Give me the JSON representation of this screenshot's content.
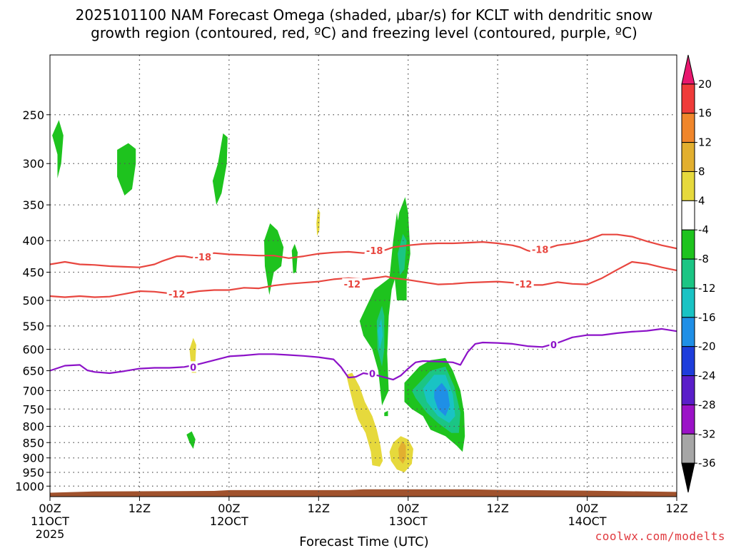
{
  "chart_data": {
    "type": "contour",
    "title_lines": [
      "2025101100 NAM Forecast Omega (shaded, μbar/s) for KCLT with dendritic snow",
      "growth region (contoured, red, ºC) and freezing level (contoured, purple, ºC)"
    ],
    "xlabel": "Forecast Time (UTC)",
    "credit": "coolwx.com/modelts",
    "y_axis": {
      "scale": "log",
      "range": [
        1040,
        200
      ],
      "ticks": [
        250,
        300,
        350,
        400,
        450,
        500,
        550,
        600,
        650,
        700,
        750,
        800,
        850,
        900,
        950,
        1000
      ]
    },
    "x_axis": {
      "range_hours": [
        0,
        84
      ],
      "ticks": [
        {
          "h": 0,
          "lines": [
            "00Z",
            "11OCT",
            "2025"
          ]
        },
        {
          "h": 12,
          "lines": [
            "12Z"
          ]
        },
        {
          "h": 24,
          "lines": [
            "00Z",
            "12OCT"
          ]
        },
        {
          "h": 36,
          "lines": [
            "12Z"
          ]
        },
        {
          "h": 48,
          "lines": [
            "00Z",
            "13OCT"
          ]
        },
        {
          "h": 60,
          "lines": [
            "12Z"
          ]
        },
        {
          "h": 72,
          "lines": [
            "00Z",
            "14OCT"
          ]
        },
        {
          "h": 84,
          "lines": [
            "12Z"
          ]
        }
      ]
    },
    "colorbar": {
      "labels": [
        "20",
        "16",
        "12",
        "8",
        "4",
        "-4",
        "-8",
        "-12",
        "-16",
        "-20",
        "-24",
        "-28",
        "-32",
        "-36"
      ],
      "colors": [
        "#e8176e",
        "#ef3b39",
        "#f0862b",
        "#e2af2f",
        "#e6d93c",
        "#ffffff",
        "#1ec31e",
        "#1bc584",
        "#19c3c4",
        "#1f8fe6",
        "#1e3ddb",
        "#5a1ec9",
        "#9b12c7",
        "#a6a6a6",
        "#000000"
      ]
    },
    "series": [
      {
        "label": "-18",
        "color": "#e8463f",
        "x": [
          0,
          2,
          4,
          6,
          8,
          10,
          12,
          14,
          15,
          16,
          17,
          18,
          19,
          20,
          21,
          22,
          24,
          26,
          28,
          30,
          32,
          34,
          36,
          38,
          40,
          42,
          44,
          45,
          46,
          48,
          50,
          52,
          54,
          56,
          58,
          60,
          62,
          63,
          64,
          65,
          66,
          68,
          70,
          72,
          74,
          76,
          78,
          80,
          82,
          84
        ],
        "y": [
          437,
          433,
          437,
          438,
          440,
          441,
          442,
          437,
          432,
          428,
          424,
          424,
          426,
          424,
          421,
          419,
          421,
          422,
          423,
          423,
          427,
          424,
          420,
          418,
          417,
          419,
          416,
          414,
          410,
          407,
          405,
          404,
          404,
          403,
          402,
          404,
          407,
          410,
          415,
          418,
          414,
          407,
          404,
          399,
          391,
          391,
          394,
          401,
          407,
          412
        ]
      },
      {
        "label": "-12",
        "color": "#e8463f",
        "x": [
          0,
          2,
          4,
          6,
          8,
          10,
          12,
          14,
          16,
          18,
          20,
          22,
          24,
          26,
          28,
          30,
          32,
          34,
          36,
          38,
          40,
          42,
          44,
          45,
          46,
          48,
          50,
          52,
          54,
          56,
          58,
          60,
          62,
          64,
          66,
          68,
          70,
          72,
          74,
          76,
          78,
          80,
          82,
          84
        ],
        "y": [
          492,
          494,
          492,
          494,
          493,
          488,
          483,
          484,
          487,
          487,
          483,
          481,
          481,
          477,
          478,
          473,
          470,
          468,
          466,
          462,
          460,
          462,
          459,
          457,
          460,
          463,
          467,
          471,
          470,
          468,
          467,
          466,
          468,
          472,
          472,
          467,
          470,
          471,
          460,
          446,
          433,
          436,
          442,
          447
        ]
      },
      {
        "label": "0",
        "color": "#8c12c8",
        "x": [
          0,
          2,
          4,
          5,
          6,
          8,
          10,
          12,
          14,
          16,
          18,
          20,
          22,
          24,
          26,
          28,
          30,
          32,
          34,
          36,
          38,
          39,
          40,
          41,
          42,
          44,
          46,
          47,
          48,
          49,
          50,
          52,
          54,
          55,
          56,
          57,
          58,
          60,
          62,
          64,
          66,
          68,
          70,
          72,
          74,
          76,
          78,
          80,
          82,
          84
        ],
        "y": [
          650,
          638,
          636,
          649,
          653,
          656,
          651,
          645,
          643,
          643,
          641,
          634,
          625,
          616,
          614,
          611,
          611,
          613,
          615,
          618,
          623,
          641,
          667,
          665,
          656,
          662,
          672,
          662,
          645,
          630,
          627,
          628,
          630,
          636,
          606,
          588,
          585,
          586,
          588,
          593,
          595,
          586,
          574,
          569,
          569,
          565,
          562,
          560,
          556,
          561
        ]
      }
    ],
    "regions": [
      {
        "fill": "#1ec31e",
        "pts": [
          [
            1.0,
            290
          ],
          [
            0.3,
            270
          ],
          [
            1.2,
            255
          ],
          [
            1.8,
            270
          ],
          [
            1.5,
            300
          ],
          [
            1.0,
            317
          ]
        ]
      },
      {
        "fill": "#1ec31e",
        "pts": [
          [
            9.0,
            285
          ],
          [
            10.5,
            278
          ],
          [
            11.5,
            284
          ],
          [
            11.5,
            300
          ],
          [
            11.0,
            330
          ],
          [
            10.0,
            338
          ],
          [
            9.0,
            315
          ]
        ]
      },
      {
        "fill": "#1ec31e",
        "pts": [
          [
            22.5,
            300
          ],
          [
            23.2,
            268
          ],
          [
            23.8,
            272
          ],
          [
            23.7,
            300
          ],
          [
            23.0,
            335
          ],
          [
            22.3,
            350
          ],
          [
            21.8,
            320
          ]
        ]
      },
      {
        "fill": "#1ec31e",
        "pts": [
          [
            28.7,
            400
          ],
          [
            29.5,
            375
          ],
          [
            30.5,
            385
          ],
          [
            31.3,
            410
          ],
          [
            31.0,
            440
          ],
          [
            30.0,
            450
          ],
          [
            29.4,
            490
          ],
          [
            28.8,
            440
          ]
        ]
      },
      {
        "fill": "#1ec31e",
        "pts": [
          [
            32.4,
            415
          ],
          [
            32.8,
            405
          ],
          [
            33.2,
            418
          ],
          [
            33.0,
            450
          ],
          [
            32.6,
            452
          ]
        ]
      },
      {
        "fill": "#1ec31e",
        "pts": [
          [
            18.3,
            825
          ],
          [
            19.0,
            815
          ],
          [
            19.5,
            840
          ],
          [
            19.2,
            870
          ],
          [
            18.7,
            850
          ]
        ]
      },
      {
        "fill": "#1ec31e",
        "pts": [
          [
            43.5,
            480
          ],
          [
            44.5,
            470
          ],
          [
            45.5,
            460
          ],
          [
            46.0,
            400
          ],
          [
            46.5,
            360
          ],
          [
            47.0,
            400
          ],
          [
            46.5,
            450
          ],
          [
            45.8,
            480
          ],
          [
            45.4,
            530
          ],
          [
            45.2,
            610
          ],
          [
            45.4,
            700
          ],
          [
            44.5,
            740
          ],
          [
            44.0,
            650
          ],
          [
            43.2,
            600
          ],
          [
            42.0,
            570
          ],
          [
            41.5,
            540
          ],
          [
            42.3,
            515
          ]
        ]
      },
      {
        "fill": "#1bc584",
        "pts": [
          [
            43.8,
            540
          ],
          [
            44.5,
            510
          ],
          [
            44.8,
            530
          ],
          [
            44.8,
            600
          ],
          [
            44.5,
            640
          ],
          [
            43.9,
            600
          ]
        ]
      },
      {
        "fill": "#19c3c4",
        "pts": [
          [
            43.9,
            560
          ],
          [
            44.4,
            535
          ],
          [
            44.6,
            570
          ],
          [
            44.2,
            600
          ]
        ]
      },
      {
        "fill": "#1ec31e",
        "pts": [
          [
            46.0,
            420
          ],
          [
            46.8,
            360
          ],
          [
            47.6,
            340
          ],
          [
            48.0,
            360
          ],
          [
            48.3,
            420
          ],
          [
            47.8,
            460
          ],
          [
            47.8,
            500
          ],
          [
            46.5,
            500
          ],
          [
            46.2,
            460
          ]
        ]
      },
      {
        "fill": "#1bc584",
        "pts": [
          [
            46.6,
            420
          ],
          [
            47.3,
            390
          ],
          [
            47.8,
            400
          ],
          [
            47.5,
            445
          ],
          [
            46.9,
            455
          ]
        ]
      },
      {
        "fill": "#1ec31e",
        "pts": [
          [
            44.8,
            760
          ],
          [
            45.3,
            755
          ],
          [
            45.3,
            770
          ],
          [
            44.8,
            770
          ]
        ]
      },
      {
        "fill": "#1ec31e",
        "pts": [
          [
            47.5,
            680
          ],
          [
            48.5,
            660
          ],
          [
            49.5,
            640
          ],
          [
            51.0,
            625
          ],
          [
            53.0,
            620
          ],
          [
            54.0,
            650
          ],
          [
            55.0,
            700
          ],
          [
            55.5,
            760
          ],
          [
            55.6,
            830
          ],
          [
            55.3,
            880
          ],
          [
            54.5,
            860
          ],
          [
            53.0,
            830
          ],
          [
            51.0,
            810
          ],
          [
            50.0,
            770
          ],
          [
            48.5,
            750
          ],
          [
            47.5,
            730
          ]
        ]
      },
      {
        "fill": "#1bc584",
        "pts": [
          [
            48.5,
            700
          ],
          [
            49.5,
            680
          ],
          [
            51.0,
            650
          ],
          [
            53.0,
            640
          ],
          [
            54.2,
            690
          ],
          [
            55.0,
            760
          ],
          [
            54.8,
            820
          ],
          [
            53.8,
            820
          ],
          [
            52.0,
            790
          ],
          [
            50.5,
            760
          ],
          [
            49.0,
            720
          ]
        ]
      },
      {
        "fill": "#19c3c4",
        "pts": [
          [
            50.0,
            695
          ],
          [
            51.5,
            660
          ],
          [
            53.0,
            660
          ],
          [
            54.0,
            710
          ],
          [
            54.3,
            770
          ],
          [
            53.5,
            790
          ],
          [
            52.0,
            770
          ],
          [
            50.5,
            730
          ]
        ]
      },
      {
        "fill": "#1f8fe6",
        "pts": [
          [
            51.5,
            700
          ],
          [
            52.5,
            680
          ],
          [
            53.3,
            700
          ],
          [
            53.6,
            740
          ],
          [
            53.0,
            770
          ],
          [
            52.0,
            750
          ],
          [
            51.5,
            720
          ]
        ]
      },
      {
        "fill": "#e6d93c",
        "pts": [
          [
            39.7,
            660
          ],
          [
            40.5,
            655
          ],
          [
            41.5,
            690
          ],
          [
            42.2,
            730
          ],
          [
            43.2,
            770
          ],
          [
            43.8,
            810
          ],
          [
            44.3,
            860
          ],
          [
            44.6,
            910
          ],
          [
            44.2,
            930
          ],
          [
            43.2,
            925
          ],
          [
            43.0,
            880
          ],
          [
            42.3,
            820
          ],
          [
            41.3,
            780
          ],
          [
            40.7,
            740
          ],
          [
            40.2,
            700
          ]
        ]
      },
      {
        "fill": "#e6d93c",
        "pts": [
          [
            45.5,
            880
          ],
          [
            46.0,
            850
          ],
          [
            47.0,
            830
          ],
          [
            48.0,
            840
          ],
          [
            48.7,
            870
          ],
          [
            48.5,
            920
          ],
          [
            47.5,
            950
          ],
          [
            46.5,
            940
          ],
          [
            45.7,
            910
          ]
        ]
      },
      {
        "fill": "#e2af2f",
        "pts": [
          [
            46.7,
            870
          ],
          [
            47.2,
            845
          ],
          [
            47.7,
            860
          ],
          [
            47.7,
            900
          ],
          [
            47.3,
            920
          ],
          [
            46.8,
            905
          ]
        ]
      },
      {
        "fill": "#e6d93c",
        "pts": [
          [
            35.7,
            375
          ],
          [
            35.9,
            355
          ],
          [
            36.2,
            360
          ],
          [
            36.1,
            385
          ],
          [
            35.8,
            393
          ]
        ]
      },
      {
        "fill": "#e6d93c",
        "pts": [
          [
            18.7,
            600
          ],
          [
            19.2,
            575
          ],
          [
            19.6,
            590
          ],
          [
            19.5,
            625
          ],
          [
            19.6,
            655
          ],
          [
            19.0,
            655
          ]
        ]
      }
    ],
    "ground": {
      "fill": "#a0522d",
      "x": [
        0,
        6,
        22,
        24,
        40,
        42,
        56,
        60,
        72,
        84
      ],
      "p": [
        1025,
        1020,
        1018,
        1015,
        1015,
        1012,
        1012,
        1014,
        1017,
        1022
      ]
    },
    "contour_labels": [
      {
        "text": "-18",
        "x": 20.5,
        "p": 425,
        "color": "#e8463f"
      },
      {
        "text": "-18",
        "x": 43.5,
        "p": 415,
        "color": "#e8463f"
      },
      {
        "text": "-18",
        "x": 65.7,
        "p": 413,
        "color": "#e8463f"
      },
      {
        "text": "-12",
        "x": 17.0,
        "p": 488,
        "color": "#e8463f"
      },
      {
        "text": "-12",
        "x": 40.5,
        "p": 470,
        "color": "#e8463f"
      },
      {
        "text": "-12",
        "x": 63.5,
        "p": 470,
        "color": "#e8463f"
      },
      {
        "text": "0",
        "x": 19.2,
        "p": 641,
        "color": "#8c12c8"
      },
      {
        "text": "0",
        "x": 43.2,
        "p": 657,
        "color": "#8c12c8"
      },
      {
        "text": "0",
        "x": 67.5,
        "p": 590,
        "color": "#8c12c8"
      }
    ]
  }
}
